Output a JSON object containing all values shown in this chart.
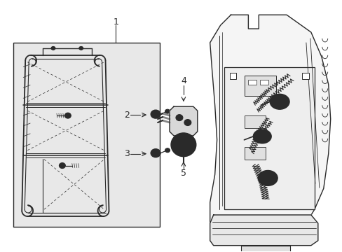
{
  "background_color": "#ffffff",
  "fig_width": 4.89,
  "fig_height": 3.6,
  "dpi": 100,
  "line_color": "#2a2a2a",
  "light_gray": "#d8d8d8",
  "box_fill": "#e8e8e8",
  "label_fontsize": 8.5
}
